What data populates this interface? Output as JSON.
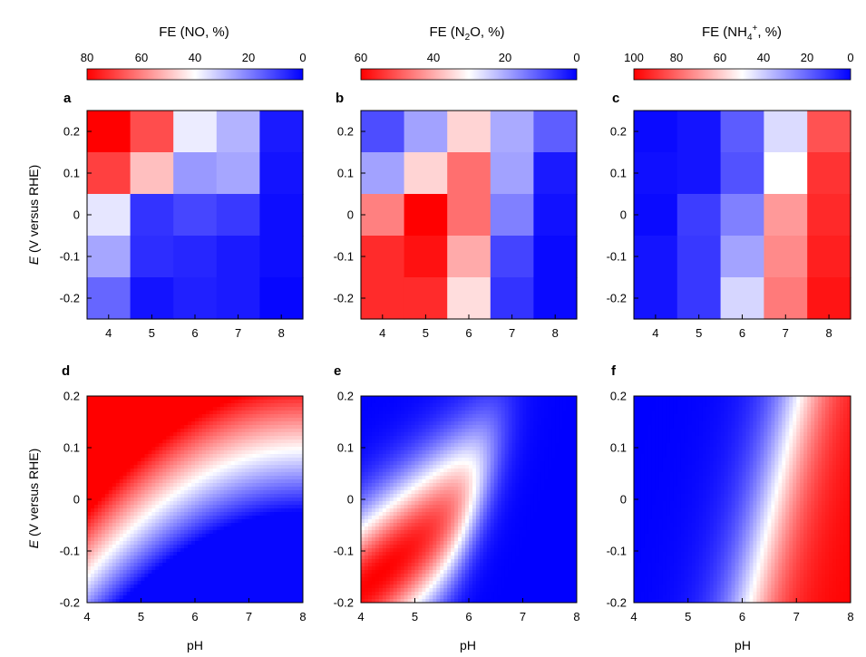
{
  "figure": {
    "ylabel_italic": "E",
    "ylabel_rest": " (V versus RHE)",
    "xlabel": "pH"
  },
  "colorbars": [
    {
      "title_pre": "FE (NO, %)",
      "title_sub": "",
      "title_sup": "",
      "title_post": "",
      "max": 80,
      "ticks": [
        "80",
        "60",
        "40",
        "20",
        "0"
      ]
    },
    {
      "title_pre": "FE (N",
      "title_sub": "2",
      "title_sup": "",
      "title_post": "O, %)",
      "max": 60,
      "ticks": [
        "60",
        "40",
        "20",
        "0"
      ]
    },
    {
      "title_pre": "FE (NH",
      "title_sub": "4",
      "title_sup": "+",
      "title_post": ", %)",
      "max": 100,
      "ticks": [
        "100",
        "80",
        "60",
        "40",
        "20",
        "0"
      ]
    }
  ],
  "chart_data": [
    {
      "type": "heatmap",
      "panel": "a",
      "title": "FE (NO, %)",
      "x": [
        4,
        5,
        6,
        7,
        8
      ],
      "y": [
        0.2,
        0.1,
        0,
        -0.1,
        -0.2
      ],
      "xticks": [
        "4",
        "5",
        "6",
        "7",
        "8"
      ],
      "yticks": [
        "0.2",
        "0.1",
        "0",
        "-0.1",
        "-0.2"
      ],
      "vmax": 80,
      "values": [
        [
          80,
          68,
          37,
          28,
          4
        ],
        [
          70,
          50,
          24,
          26,
          3
        ],
        [
          36,
          8,
          11,
          9,
          2
        ],
        [
          26,
          7,
          6,
          4,
          2
        ],
        [
          16,
          3,
          5,
          4,
          1
        ]
      ]
    },
    {
      "type": "heatmap",
      "panel": "b",
      "title": "FE (N2O, %)",
      "x": [
        4,
        5,
        6,
        7,
        8
      ],
      "y": [
        0.2,
        0.1,
        0,
        -0.1,
        -0.2
      ],
      "xticks": [
        "4",
        "5",
        "6",
        "7",
        "8"
      ],
      "yticks": [
        "0.2",
        "0.1",
        "0",
        "-0.1",
        "-0.2"
      ],
      "vmax": 60,
      "values": [
        [
          9,
          19,
          35,
          20,
          11
        ],
        [
          19,
          35,
          47,
          19,
          3
        ],
        [
          45,
          60,
          47,
          15,
          2
        ],
        [
          55,
          58,
          40,
          8,
          1
        ],
        [
          55,
          55,
          34,
          6,
          1
        ]
      ]
    },
    {
      "type": "heatmap",
      "panel": "c",
      "title": "FE (NH4+, %)",
      "x": [
        4,
        5,
        6,
        7,
        8
      ],
      "y": [
        0.2,
        0.1,
        0,
        -0.1,
        -0.2
      ],
      "xticks": [
        "4",
        "5",
        "6",
        "7",
        "8"
      ],
      "yticks": [
        "0.2",
        "0.1",
        "0",
        "-0.1",
        "-0.2"
      ],
      "vmax": 100,
      "values": [
        [
          2,
          4,
          18,
          43,
          84
        ],
        [
          3,
          4,
          16,
          50,
          90
        ],
        [
          2,
          12,
          25,
          70,
          92
        ],
        [
          4,
          11,
          32,
          73,
          94
        ],
        [
          4,
          11,
          42,
          76,
          96
        ]
      ]
    },
    {
      "type": "contour",
      "panel": "d",
      "title": "FE (NO, %)",
      "xlim": [
        4,
        8
      ],
      "ylim": [
        -0.2,
        0.2
      ],
      "xticks": [
        "4",
        "5",
        "6",
        "7",
        "8"
      ],
      "yticks": [
        "0.2",
        "0.1",
        "0",
        "-0.1",
        "-0.2"
      ],
      "vmax": 80,
      "model": {
        "base": 40,
        "e_coef": 325,
        "ph_coef": -25,
        "ph_sq": 5,
        "ph_ref": 5.5,
        "min_val": 1
      }
    },
    {
      "type": "contour",
      "panel": "e",
      "title": "FE (N2O, %)",
      "xlim": [
        4,
        8
      ],
      "ylim": [
        -0.2,
        0.2
      ],
      "xticks": [
        "4",
        "5",
        "6",
        "7",
        "8"
      ],
      "yticks": [
        "0.2",
        "0.1",
        "0",
        "-0.1",
        "-0.2"
      ],
      "vmax": 60,
      "model": {
        "peak": 60,
        "ph_center": 4.3,
        "ph_slope": 9.5,
        "e_center": -0.15,
        "sig_ph": 1.5,
        "sig_e": 0.32,
        "cutoff_center": 6.2,
        "cutoff_slope": 2.3,
        "cutoff_width": 0.2
      }
    },
    {
      "type": "contour",
      "panel": "f",
      "title": "FE (NH4+, %)",
      "xlim": [
        4,
        8
      ],
      "ylim": [
        -0.2,
        0.2
      ],
      "xticks": [
        "4",
        "5",
        "6",
        "7",
        "8"
      ],
      "yticks": [
        "0.2",
        "0.1",
        "0",
        "-0.1",
        "-0.2"
      ],
      "vmax": 100,
      "model": {
        "max": 100,
        "mid_center": 6.6,
        "mid_slope": 2.3,
        "width": 0.38
      }
    }
  ]
}
